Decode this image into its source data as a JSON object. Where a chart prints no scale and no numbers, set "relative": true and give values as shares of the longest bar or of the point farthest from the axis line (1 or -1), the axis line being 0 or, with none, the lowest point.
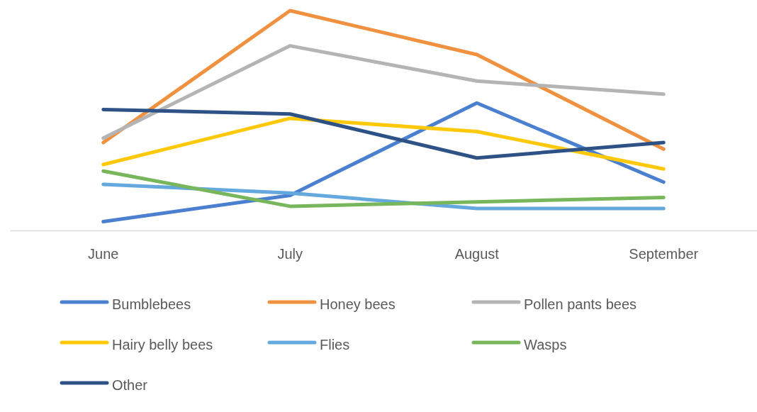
{
  "chart_data": {
    "type": "line",
    "relative": true,
    "legend": "bottom",
    "line_style": "solid",
    "categories": [
      "June",
      "July",
      "August",
      "September"
    ],
    "series": [
      {
        "name": "Bumblebees",
        "color": "#4a80cf",
        "values": [
          0.04,
          0.16,
          0.58,
          0.22
        ]
      },
      {
        "name": "Honey bees",
        "color": "#f0913f",
        "values": [
          0.4,
          1,
          0.8,
          0.37
        ]
      },
      {
        "name": "Pollen pants bees",
        "color": "#b4b4b4",
        "values": [
          0.42,
          0.84,
          0.68,
          0.62
        ]
      },
      {
        "name": "Hairy belly bees",
        "color": "#ffc90a",
        "values": [
          0.3,
          0.51,
          0.45,
          0.28
        ]
      },
      {
        "name": "Flies",
        "color": "#64a8de",
        "values": [
          0.21,
          0.17,
          0.1,
          0.1
        ]
      },
      {
        "name": "Wasps",
        "color": "#77b65a",
        "values": [
          0.27,
          0.11,
          0.13,
          0.15
        ]
      },
      {
        "name": "Other",
        "color": "#2e5286",
        "values": [
          0.55,
          0.53,
          0.33,
          0.4
        ]
      }
    ]
  }
}
